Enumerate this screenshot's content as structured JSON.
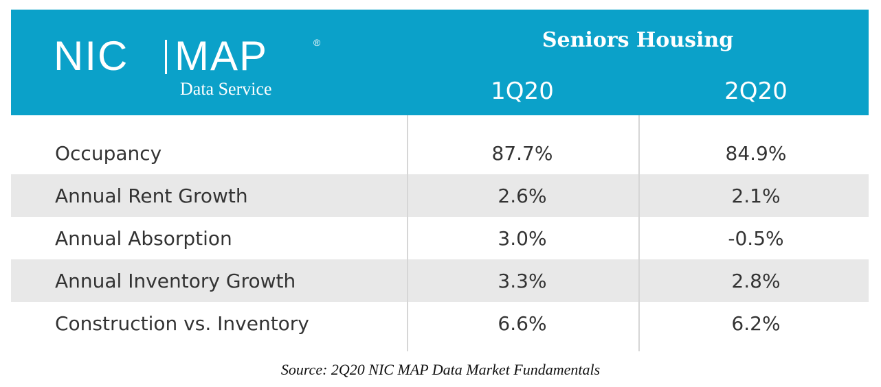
{
  "header": {
    "logo": {
      "left": "NIC",
      "right": "MAP",
      "mark": "®",
      "subtitle": "Data Service"
    },
    "title": "Seniors Housing",
    "columns": [
      "1Q20",
      "2Q20"
    ]
  },
  "table": {
    "rows": [
      [
        "Occupancy",
        "87.7%",
        "84.9%"
      ],
      [
        "Annual Rent Growth",
        "2.6%",
        "2.1%"
      ],
      [
        "Annual Absorption",
        "3.0%",
        "-0.5%"
      ],
      [
        "Annual Inventory Growth",
        "3.3%",
        "2.8%"
      ],
      [
        "Construction vs. Inventory",
        "6.6%",
        "6.2%"
      ]
    ]
  },
  "footer": {
    "source": "Source: 2Q20 NIC MAP Data Market Fundamentals"
  }
}
